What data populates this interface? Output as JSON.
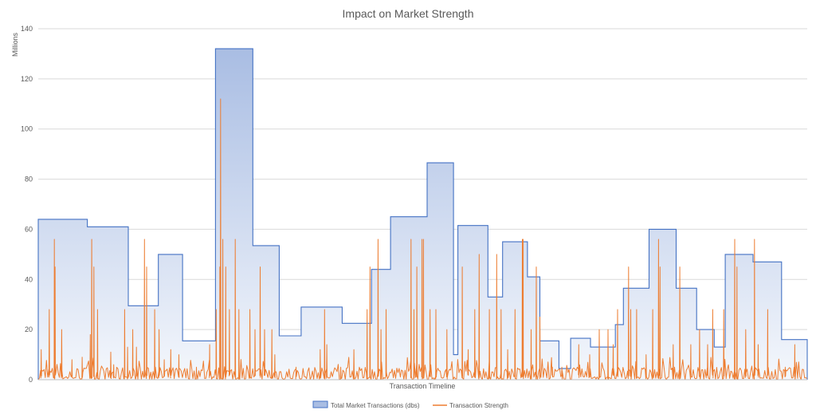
{
  "chart_data": {
    "type": "area",
    "title": "Impact on Market Strength",
    "xlabel": "Transaction Timeline",
    "ylabel": "Millions",
    "ylim": [
      0,
      140
    ],
    "yticks": [
      0,
      20,
      40,
      60,
      80,
      100,
      120,
      140
    ],
    "grid": true,
    "legend_position": "bottom",
    "series": [
      {
        "name": "Total Market Transactions (dbs)",
        "style": "stepped-area",
        "fill_top": "#a9bde3",
        "fill_bottom": "#f4f7fc",
        "stroke": "#4472c4",
        "segments": [
          {
            "x": [
              0,
              6.7
            ],
            "y": 64
          },
          {
            "x": [
              6.7,
              12.3
            ],
            "y": 61
          },
          {
            "x": [
              12.3,
              16.4
            ],
            "y": 29.5
          },
          {
            "x": [
              16.4,
              19.7
            ],
            "y": 50
          },
          {
            "x": [
              19.7,
              24.2
            ],
            "y": 15.5
          },
          {
            "x": [
              24.2,
              29.3
            ],
            "y": 132
          },
          {
            "x": [
              29.3,
              32.9
            ],
            "y": 53.5
          },
          {
            "x": [
              32.9,
              35.9
            ],
            "y": 17.5
          },
          {
            "x": [
              35.9,
              41.5
            ],
            "y": 29
          },
          {
            "x": [
              41.5,
              45.5
            ],
            "y": 22.5
          },
          {
            "x": [
              45.5,
              48.1
            ],
            "y": 44
          },
          {
            "x": [
              48.1,
              53.1
            ],
            "y": 65
          },
          {
            "x": [
              53.1,
              56.7
            ],
            "y": 86.5
          },
          {
            "x": [
              56.7,
              57.3
            ],
            "y": 10
          },
          {
            "x": [
              57.3,
              61.4
            ],
            "y": 61.5
          },
          {
            "x": [
              61.4,
              63.4
            ],
            "y": 33
          },
          {
            "x": [
              63.4,
              66.8
            ],
            "y": 55
          },
          {
            "x": [
              66.8,
              68.5
            ],
            "y": 41
          },
          {
            "x": [
              68.5,
              71.1
            ],
            "y": 15.5
          },
          {
            "x": [
              71.1,
              72.7
            ],
            "y": 4.5
          },
          {
            "x": [
              72.7,
              75.4
            ],
            "y": 16.5
          },
          {
            "x": [
              75.4,
              78.8
            ],
            "y": 13
          },
          {
            "x": [
              78.8,
              79.9
            ],
            "y": 22
          },
          {
            "x": [
              79.9,
              83.4
            ],
            "y": 36.5
          },
          {
            "x": [
              83.4,
              87.1
            ],
            "y": 60
          },
          {
            "x": [
              87.1,
              89.9
            ],
            "y": 36.5
          },
          {
            "x": [
              89.9,
              92.3
            ],
            "y": 20
          },
          {
            "x": [
              92.3,
              93.8
            ],
            "y": 13
          },
          {
            "x": [
              93.8,
              97.6
            ],
            "y": 50
          },
          {
            "x": [
              97.6,
              101.5
            ],
            "y": 47
          },
          {
            "x": [
              101.5,
              105
            ],
            "y": 16
          }
        ]
      },
      {
        "name": "Transaction Strength",
        "style": "line",
        "stroke": "#ed7d31",
        "x_range": [
          0,
          105
        ],
        "noise_max": 5,
        "spikes": [
          [
            0.4,
            12
          ],
          [
            1.5,
            28
          ],
          [
            2.2,
            56
          ],
          [
            2.3,
            45
          ],
          [
            3.2,
            20
          ],
          [
            4.6,
            8
          ],
          [
            6,
            9
          ],
          [
            7.1,
            18
          ],
          [
            7.3,
            56
          ],
          [
            7.6,
            45
          ],
          [
            8.1,
            28
          ],
          [
            9.9,
            11
          ],
          [
            10.3,
            6
          ],
          [
            11.8,
            28
          ],
          [
            12.2,
            13
          ],
          [
            12.9,
            20
          ],
          [
            13.4,
            13
          ],
          [
            14.5,
            56
          ],
          [
            14.8,
            45
          ],
          [
            15.9,
            28
          ],
          [
            16.5,
            20
          ],
          [
            17.2,
            8
          ],
          [
            18.1,
            12
          ],
          [
            19.2,
            10
          ],
          [
            21.6,
            5
          ],
          [
            23.4,
            14
          ],
          [
            24.3,
            28
          ],
          [
            24.8,
            45
          ],
          [
            24.9,
            112
          ],
          [
            25.2,
            56
          ],
          [
            25.6,
            45
          ],
          [
            26.1,
            28
          ],
          [
            26.9,
            56
          ],
          [
            27.4,
            28
          ],
          [
            28.9,
            28
          ],
          [
            29.6,
            20
          ],
          [
            30.3,
            45
          ],
          [
            30.9,
            20
          ],
          [
            31.9,
            20
          ],
          [
            32.3,
            10
          ],
          [
            35.2,
            5
          ],
          [
            38.5,
            12
          ],
          [
            39.1,
            28
          ],
          [
            39.4,
            14
          ],
          [
            41.3,
            5
          ],
          [
            43.1,
            12
          ],
          [
            44.9,
            28
          ],
          [
            45.3,
            45
          ],
          [
            46.4,
            56
          ],
          [
            46.8,
            20
          ],
          [
            47.5,
            28
          ],
          [
            50.9,
            56
          ],
          [
            51.3,
            28
          ],
          [
            51.7,
            45
          ],
          [
            52.4,
            56
          ],
          [
            52.6,
            56
          ],
          [
            53.5,
            28
          ],
          [
            54.3,
            28
          ],
          [
            55.8,
            20
          ],
          [
            57.9,
            45
          ],
          [
            58.7,
            12
          ],
          [
            59.6,
            28
          ],
          [
            60.2,
            50
          ],
          [
            61.6,
            28
          ],
          [
            62.6,
            50
          ],
          [
            63.2,
            28
          ],
          [
            64.1,
            12
          ],
          [
            65.1,
            28
          ],
          [
            66.1,
            56
          ],
          [
            66.2,
            56
          ],
          [
            67.3,
            20
          ],
          [
            68,
            45
          ],
          [
            68.5,
            25
          ],
          [
            70.2,
            5
          ],
          [
            71.5,
            5
          ],
          [
            73.8,
            14
          ],
          [
            75.3,
            10
          ],
          [
            76.6,
            20
          ],
          [
            77.8,
            20
          ],
          [
            78.5,
            14
          ],
          [
            79.1,
            28
          ],
          [
            80.6,
            45
          ],
          [
            80.9,
            28
          ],
          [
            81.7,
            28
          ],
          [
            83,
            10
          ],
          [
            83.9,
            28
          ],
          [
            84.7,
            56
          ],
          [
            84.9,
            45
          ],
          [
            86.7,
            14
          ],
          [
            87.6,
            45
          ],
          [
            89.1,
            14
          ],
          [
            90.3,
            20
          ],
          [
            91.4,
            14
          ],
          [
            92.1,
            28
          ],
          [
            93.6,
            28
          ],
          [
            95.1,
            56
          ],
          [
            95.4,
            45
          ],
          [
            96.6,
            20
          ],
          [
            97.8,
            56
          ],
          [
            98.3,
            14
          ],
          [
            99.6,
            28
          ],
          [
            102,
            5
          ],
          [
            103.3,
            14
          ]
        ]
      }
    ]
  }
}
